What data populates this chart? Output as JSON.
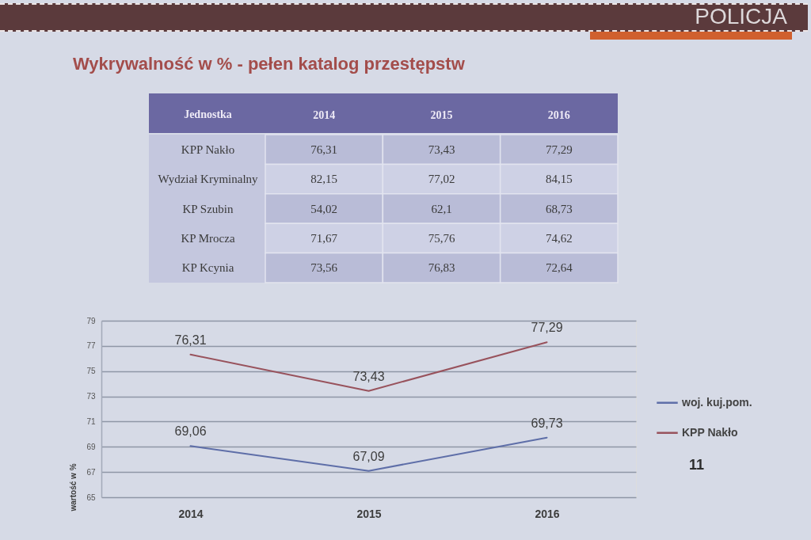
{
  "chart_data": [
    {
      "type": "heatmap",
      "title": "Wykrywalność w % - pełen katalog przestępstw",
      "ylabel": "Jednostka",
      "categories": [
        "2014",
        "2015",
        "2016"
      ],
      "y_categories": [
        "KPP Nakło",
        "Wydział Kryminalny",
        "KP Szubin",
        "KP Mrocza",
        "KP Kcynia"
      ],
      "cells": [
        [
          76.31,
          73.43,
          77.29
        ],
        [
          82.15,
          77.02,
          84.15
        ],
        [
          54.02,
          62.1,
          68.73
        ],
        [
          71.67,
          75.76,
          74.62
        ],
        [
          73.56,
          76.83,
          72.64
        ]
      ],
      "cell_labels": [
        [
          "76,31",
          "73,43",
          "77,29"
        ],
        [
          "82,15",
          "77,02",
          "84,15"
        ],
        [
          "54,02",
          "62,1",
          "68,73"
        ],
        [
          "71,67",
          "75,76",
          "74,62"
        ],
        [
          "73,56",
          "76,83",
          "72,64"
        ]
      ],
      "annotations": [
        "POLICJA"
      ]
    },
    {
      "type": "line",
      "ylabel": "wartość w %",
      "categories": [
        "2014",
        "2015",
        "2016"
      ],
      "ylim": [
        65,
        79
      ],
      "yticks": [
        65,
        67,
        69,
        71,
        73,
        75,
        77,
        79
      ],
      "grid": "y",
      "legend": "right",
      "series": [
        {
          "name": "woj. kuj.pom.",
          "color": "#5e6ea8",
          "values": [
            69.06,
            67.09,
            69.73
          ],
          "value_labels": [
            "69,06",
            "67,09",
            "69,73"
          ]
        },
        {
          "name": "KPP Nakło",
          "color": "#98525c",
          "values": [
            76.31,
            73.43,
            77.29
          ],
          "value_labels": [
            "76,31",
            "73,43",
            "77,29"
          ]
        }
      ],
      "annotations": [
        "11"
      ]
    }
  ]
}
